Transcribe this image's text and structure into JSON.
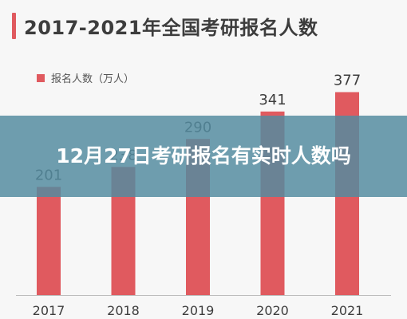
{
  "header": {
    "title": "2017-2021年全国考研报名人数"
  },
  "legend": {
    "label": "报名人数（万人）",
    "color": "#e05a5f"
  },
  "overlay": {
    "text": "12月27日考研报名有实时人数吗"
  },
  "colors": {
    "bar": "#e05a5f",
    "overlay": "#548ca0",
    "axis": "#bdbdbd",
    "text": "#3d3d3d"
  },
  "chart_data": {
    "type": "bar",
    "categories": [
      "2017",
      "2018",
      "2019",
      "2020",
      "2021"
    ],
    "series": [
      {
        "name": "报名人数（万人）",
        "values": [
          201,
          238,
          290,
          341,
          377
        ]
      }
    ],
    "data_labels": [
      "201",
      "238",
      "290",
      "341",
      "377"
    ],
    "title": "2017-2021年全国考研报名人数",
    "xlabel": "",
    "ylabel": "",
    "ylim": [
      0,
      400
    ],
    "grid": false,
    "legend": "top-left"
  }
}
